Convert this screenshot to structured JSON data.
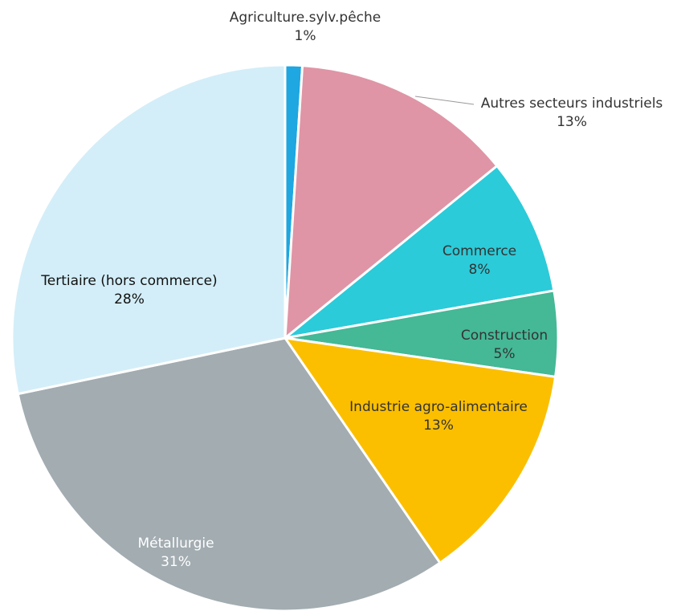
{
  "chart_data": {
    "type": "pie",
    "categories": [
      "Agriculture.sylv.pêche",
      "Autres secteurs industriels",
      "Commerce",
      "Construction",
      "Industrie agro-alimentaire",
      "Métallurgie",
      "Tertiaire (hors commerce)"
    ],
    "values": [
      1,
      13,
      8,
      5,
      13,
      31,
      28
    ],
    "value_labels": [
      "1%",
      "13%",
      "8%",
      "5%",
      "13%",
      "31%",
      "28%"
    ],
    "colors": [
      "#1ea7e0",
      "#df95a5",
      "#2bcbd9",
      "#45b896",
      "#fbbf00",
      "#a2acb1",
      "#d3eef8"
    ]
  }
}
